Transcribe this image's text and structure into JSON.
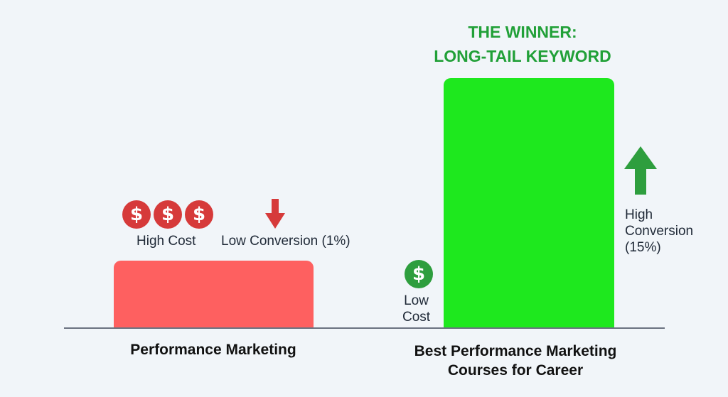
{
  "chart_data": {
    "type": "bar",
    "categories": [
      "Performance Marketing",
      "Best Performance Marketing Courses for Career"
    ],
    "values": [
      1,
      15
    ],
    "ylim": [
      0,
      20
    ],
    "colors": [
      "#fe6060",
      "#1ee81e"
    ],
    "annotations": {
      "winner_title_line1": "THE WINNER:",
      "winner_title_line2": "LONG-TAIL KEYWORD",
      "bar1_cost_label": "High Cost",
      "bar1_conversion_label": "Low Conversion (1%)",
      "bar2_cost_line1": "Low",
      "bar2_cost_line2": "Cost",
      "bar2_conversion_line1": "High",
      "bar2_conversion_line2": "Conversion",
      "bar2_conversion_line3": "(15%)"
    },
    "icons": {
      "high_cost": [
        "dollar-coin-icon",
        "dollar-coin-icon",
        "dollar-coin-icon"
      ],
      "low_cost": [
        "dollar-coin-icon"
      ],
      "low_conversion": "arrow-down-icon",
      "high_conversion": "arrow-up-icon"
    },
    "icon_colors": {
      "red": "#d63a3a",
      "green": "#2e9e3e"
    }
  }
}
